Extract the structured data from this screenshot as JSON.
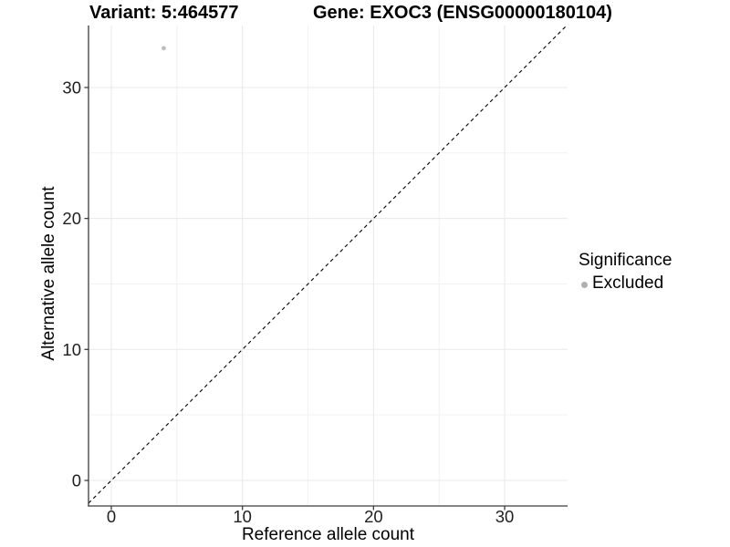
{
  "figure": {
    "title_variant": "Variant: 5:464577",
    "title_gene": "Gene: EXOC3 (ENSG00000180104)"
  },
  "chart_data": {
    "type": "scatter",
    "title": "Variant: 5:464577   Gene: EXOC3 (ENSG00000180104)",
    "xlabel": "Reference allele count",
    "ylabel": "Alternative allele count",
    "xlim": [
      -1.74,
      34.8
    ],
    "ylim": [
      -1.95,
      34.73
    ],
    "x_ticks": [
      0,
      10,
      20,
      30
    ],
    "y_ticks": [
      0,
      10,
      20,
      30
    ],
    "minor_grid_step": 5,
    "grid": "major and minor gridlines, light gray on white background",
    "identity_line": {
      "meaning": "y = x",
      "style": "dashed",
      "color": "#000000"
    },
    "series": [
      {
        "name": "Excluded",
        "color": "#bdbdbd",
        "marker": "circle",
        "points": [
          {
            "x": 4,
            "y": 33
          }
        ]
      }
    ],
    "legend": {
      "title": "Significance",
      "position": "right",
      "entries": [
        {
          "label": "Excluded",
          "color": "#b0b0b0"
        }
      ]
    }
  },
  "colors": {
    "background": "#ffffff",
    "axis_line": "#3c3c3c",
    "tick_label": "#1f1f1f",
    "grid_major": "#e8e8e8",
    "grid_minor": "#f2f2f2",
    "point": "#bdbdbd"
  }
}
